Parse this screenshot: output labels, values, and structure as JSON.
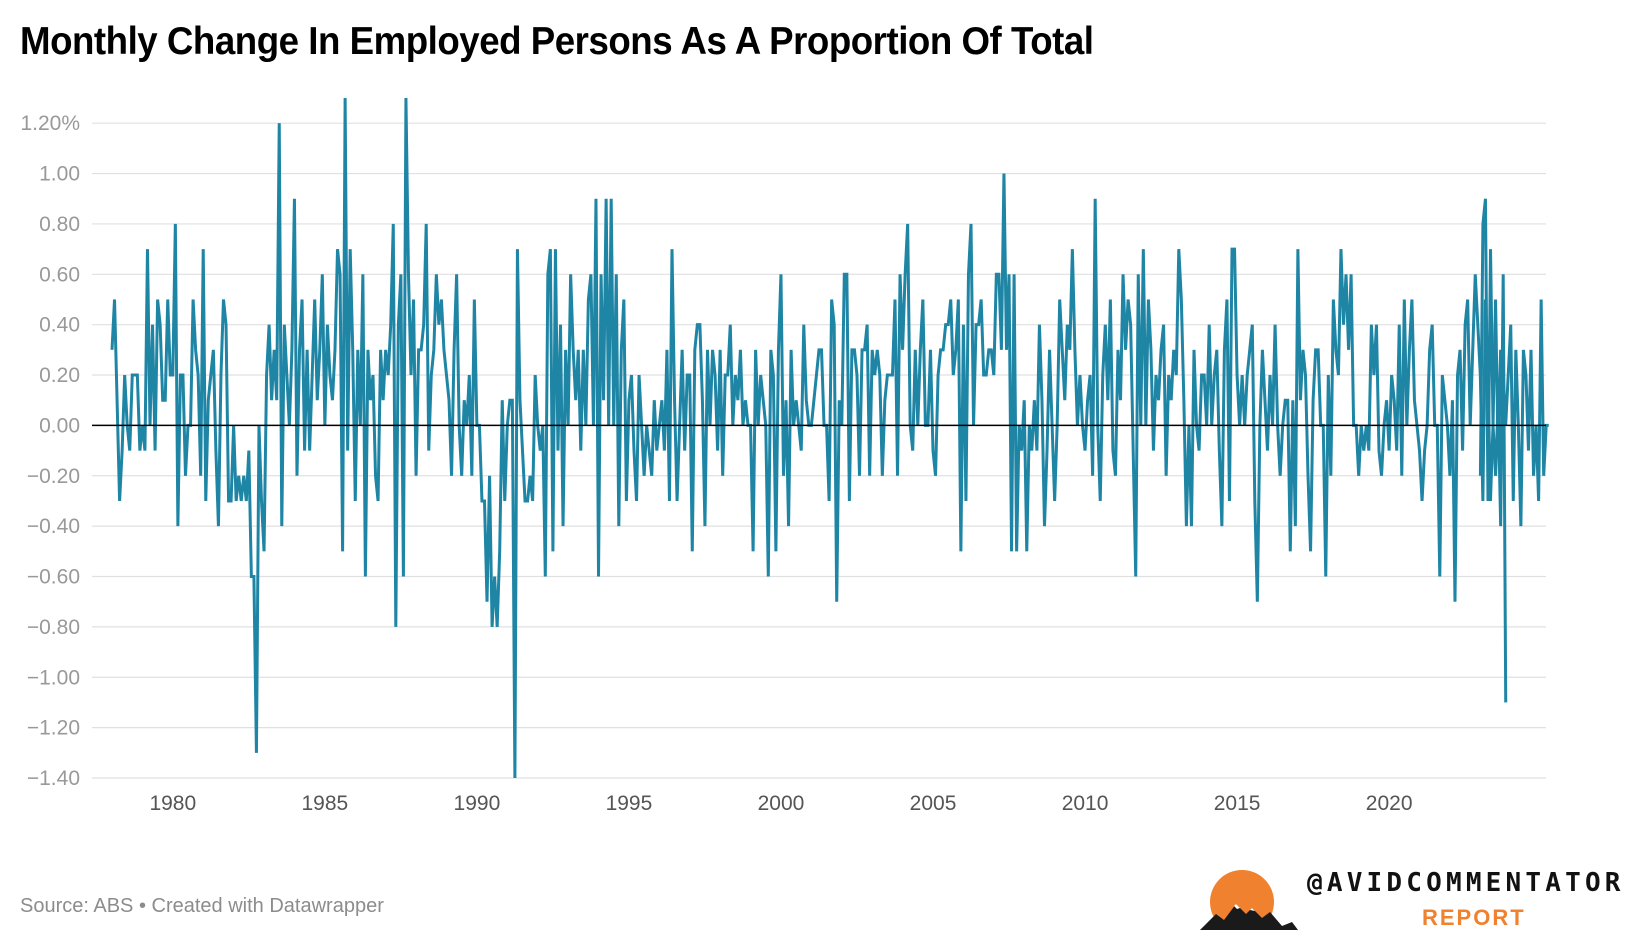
{
  "title": "Monthly Change In Employed Persons As A Proportion Of Total",
  "source": "Source: ABS • Created with Datawrapper",
  "brand": {
    "handle": "@AVIDCOMMENTATOR",
    "sub": "REPORT",
    "logo_icon": "sun-mountains-logo",
    "accent": "#f0812e"
  },
  "colors": {
    "line": "#1f85a5",
    "zero": "#000000",
    "grid": "#e0e0e0"
  },
  "chart_data": {
    "type": "line",
    "title": "Monthly Change In Employed Persons As A Proportion Of Total",
    "xlabel": "",
    "ylabel": "",
    "ylim": [
      -1.4,
      1.3
    ],
    "xlim": [
      1978.0,
      2024.5
    ],
    "yticks": [
      1.2,
      1.0,
      0.8,
      0.6,
      0.4,
      0.2,
      0.0,
      -0.2,
      -0.4,
      -0.6,
      -0.8,
      -1.0,
      -1.2,
      -1.4
    ],
    "ytick_labels": [
      "1.20%",
      "1.00",
      "0.80",
      "0.60",
      "0.40",
      "0.20",
      "0.00",
      "−0.20",
      "−0.40",
      "−0.60",
      "−0.80",
      "−1.00",
      "−1.20",
      "−1.40"
    ],
    "xticks": [
      1980,
      1985,
      1990,
      1995,
      2000,
      2005,
      2010,
      2015,
      2020
    ],
    "xtick_labels": [
      "1980",
      "1985",
      "1990",
      "1995",
      "2000",
      "2005",
      "2010",
      "2015",
      "2020"
    ],
    "grid": true,
    "series": [
      {
        "segments": [
          {
            "start": 1978.0,
            "step": 0.08333,
            "values": [
              0.3,
              0.5,
              0.1,
              -0.3,
              -0.1,
              0.2,
              0.0,
              -0.1,
              0.2,
              0.2,
              0.2,
              -0.1,
              0.0,
              -0.1,
              0.7,
              0.0,
              0.4,
              -0.1,
              0.5,
              0.4,
              0.1,
              0.1,
              0.5,
              0.2,
              0.2,
              0.8,
              -0.4,
              0.2,
              0.2,
              -0.2,
              0.0,
              0.0,
              0.5,
              0.3,
              0.2,
              -0.2,
              0.7,
              -0.3,
              0.1,
              0.2,
              0.3,
              -0.1,
              -0.4,
              0.2,
              0.5,
              0.4,
              -0.3,
              -0.3,
              0.0,
              -0.3,
              -0.2,
              -0.3,
              -0.2,
              -0.3,
              -0.1,
              -0.6,
              -0.6,
              -1.3,
              0.0,
              -0.3,
              -0.5,
              0.2,
              0.4,
              0.1,
              0.3,
              0.1,
              1.2,
              -0.4,
              0.4,
              0.2,
              0.0,
              0.3,
              0.9,
              -0.2,
              0.3,
              0.5,
              -0.1,
              0.3,
              -0.1,
              0.2,
              0.5,
              0.1,
              0.3,
              0.6,
              0.0,
              0.4,
              0.2,
              0.1,
              0.3,
              0.7,
              0.6,
              -0.5,
              1.3,
              -0.1,
              0.7,
              0.3,
              -0.3,
              0.3,
              0.0,
              0.6,
              -0.6,
              0.3,
              0.1,
              0.2,
              -0.2,
              -0.3,
              0.3,
              0.1,
              0.3,
              0.2,
              0.4,
              0.8,
              -0.8,
              0.4,
              0.6,
              -0.6,
              1.3,
              0.6,
              0.2,
              0.5,
              -0.2,
              0.3,
              0.3,
              0.4,
              0.8,
              -0.1,
              0.2,
              0.3,
              0.6,
              0.4,
              0.5,
              0.3,
              0.2,
              0.1,
              -0.2,
              0.3,
              0.6,
              0.0,
              -0.2,
              0.1,
              0.0,
              0.2,
              -0.2,
              0.5,
              0.0,
              0.0,
              -0.3,
              -0.3,
              -0.7,
              -0.2,
              -0.8,
              -0.6,
              -0.8,
              -0.5,
              0.1,
              -0.3,
              0.0,
              0.1,
              0.1,
              -1.4,
              0.7,
              0.1,
              -0.1,
              -0.3,
              -0.3,
              -0.2,
              -0.3,
              0.2,
              0.0,
              -0.1,
              0.0,
              -0.6,
              0.6,
              0.7,
              -0.5,
              0.7,
              -0.1,
              0.4,
              -0.4,
              0.3,
              0.0,
              0.6,
              0.3,
              0.1,
              0.3,
              -0.1,
              0.3,
              0.0,
              0.5,
              0.6,
              0.0,
              0.9,
              -0.6,
              0.6,
              0.1,
              0.9,
              0.0,
              0.9,
              0.0,
              0.6,
              -0.4,
              0.3,
              0.5,
              -0.3,
              0.1,
              0.2,
              -0.1,
              -0.3,
              0.2,
              0.0,
              -0.2,
              0.0,
              -0.1,
              -0.2,
              0.1,
              -0.1,
              0.0,
              0.1,
              -0.1,
              0.3,
              -0.3,
              0.7,
              0.1,
              -0.3,
              0.0,
              0.3,
              -0.1,
              0.2,
              0.2,
              -0.5,
              0.3,
              0.4,
              0.4,
              0.1,
              -0.4,
              0.3,
              0.0,
              0.3,
              0.2,
              -0.1,
              0.3,
              -0.2,
              0.2,
              0.2,
              0.4,
              0.0,
              0.2,
              0.1,
              0.3,
              0.0,
              0.1,
              0.0,
              0.0,
              -0.5,
              0.3,
              0.0,
              0.2,
              0.1,
              0.0,
              -0.6,
              0.3,
              0.2,
              -0.5,
              0.3,
              0.6,
              -0.2,
              0.1,
              -0.4,
              0.3,
              0.0,
              0.1,
              0.0,
              -0.1,
              0.4,
              0.1,
              0.0,
              0.0,
              0.1,
              0.2,
              0.3,
              0.3,
              0.0,
              0.0,
              -0.3,
              0.5,
              0.4,
              -0.7,
              0.1,
              0.0,
              0.6,
              0.6,
              -0.3,
              0.3,
              0.3,
              0.2,
              -0.2,
              0.3,
              0.3,
              0.4,
              -0.2,
              0.3,
              0.2,
              0.3,
              0.2,
              -0.2,
              0.1,
              0.2,
              0.2,
              0.2,
              0.5,
              -0.2,
              0.6,
              0.3,
              0.6,
              0.8,
              0.0,
              -0.1,
              0.3,
              0.0,
              0.3,
              0.5,
              0.0,
              0.0,
              0.3,
              -0.1,
              -0.2,
              0.2,
              0.3,
              0.3,
              0.4,
              0.4,
              0.5,
              0.2,
              0.3,
              0.5,
              -0.5,
              0.4,
              -0.3,
              0.6,
              0.8,
              0.0,
              0.4,
              0.4,
              0.5,
              0.2,
              0.2,
              0.3,
              0.3,
              0.2,
              0.6,
              0.6,
              0.3,
              1.0,
              0.3,
              0.6,
              -0.5,
              0.6,
              -0.5,
              0.0,
              -0.1,
              0.1,
              -0.5,
              0.0,
              -0.1,
              0.1,
              -0.1,
              0.4,
              0.1,
              -0.4,
              -0.1,
              0.3,
              0.0,
              -0.3,
              0.0,
              0.5,
              0.3,
              0.1,
              0.4,
              0.3,
              0.7,
              0.3,
              0.0,
              0.2,
              0.0,
              -0.1,
              0.1,
              0.2,
              -0.2,
              0.9,
              0.0,
              -0.3,
              0.2,
              0.4,
              0.1,
              0.5,
              -0.1,
              -0.2,
              0.3,
              0.1,
              0.6,
              0.3,
              0.5,
              0.4,
              -0.1,
              -0.6,
              0.6,
              0.0,
              0.7,
              0.0,
              0.5,
              0.3,
              -0.1,
              0.2,
              0.1,
              0.3,
              0.4,
              -0.2,
              0.2,
              0.1,
              0.3,
              0.2,
              0.7,
              0.5,
              0.1,
              -0.4,
              0.0,
              -0.4,
              0.3,
              0.0,
              -0.1,
              0.2,
              0.2,
              0.0,
              0.4,
              0.0,
              0.2,
              0.3,
              -0.1,
              -0.4,
              0.3,
              0.5,
              -0.3,
              0.7,
              0.7,
              0.2,
              0.0,
              0.2,
              0.0,
              0.2,
              0.3,
              0.4,
              -0.3,
              -0.7,
              0.0,
              0.3,
              0.1,
              -0.1,
              0.2,
              0.0,
              0.4,
              0.0,
              -0.2,
              0.0,
              0.1,
              0.1,
              -0.5,
              0.1,
              -0.4,
              0.7,
              0.1,
              0.3,
              0.2,
              -0.2,
              -0.5,
              0.1,
              0.3,
              0.3,
              0.0,
              0.0,
              -0.6,
              0.2,
              -0.2,
              0.5,
              0.3,
              0.2,
              0.7,
              0.4,
              0.6,
              0.3,
              0.6,
              0.0,
              0.0,
              -0.2,
              0.0,
              -0.1,
              0.0,
              -0.1,
              0.4,
              0.2,
              0.4,
              -0.1,
              -0.2,
              0.0,
              0.1,
              -0.1,
              0.2,
              0.1,
              -0.1,
              0.4,
              -0.2,
              0.5,
              0.0,
              0.3,
              0.5,
              0.1,
              0.0,
              -0.1,
              -0.3,
              -0.1,
              0.0,
              0.3,
              0.4,
              0.0,
              0.0,
              -0.6,
              0.2,
              0.1,
              0.0,
              -0.2,
              0.1,
              -0.7,
              0.2,
              0.3,
              -0.1,
              0.4,
              0.5,
              0.0,
              0.3,
              0.6,
              0.4,
              0.2,
              -0.3,
              0.5,
              0.2,
              -0.3,
              0.0,
              0.5,
              -0.1,
              0.3,
              0.2,
              0.0,
              0.2,
              0.4,
              -0.3,
              0.3,
              0.0,
              -0.4,
              0.3,
              0.2,
              -0.1,
              0.3,
              -0.2,
              0.0,
              -0.3,
              0.5,
              -0.2,
              0.0,
              0.0
            ]
          },
          {
            "start": 2023.0,
            "step": 0.08333,
            "values": [
              -0.2,
              0.8,
              0.9,
              -0.3,
              0.7,
              0.0,
              -0.2,
              0.1,
              -0.4,
              0.6,
              -1.1
            ]
          }
        ]
      }
    ]
  }
}
